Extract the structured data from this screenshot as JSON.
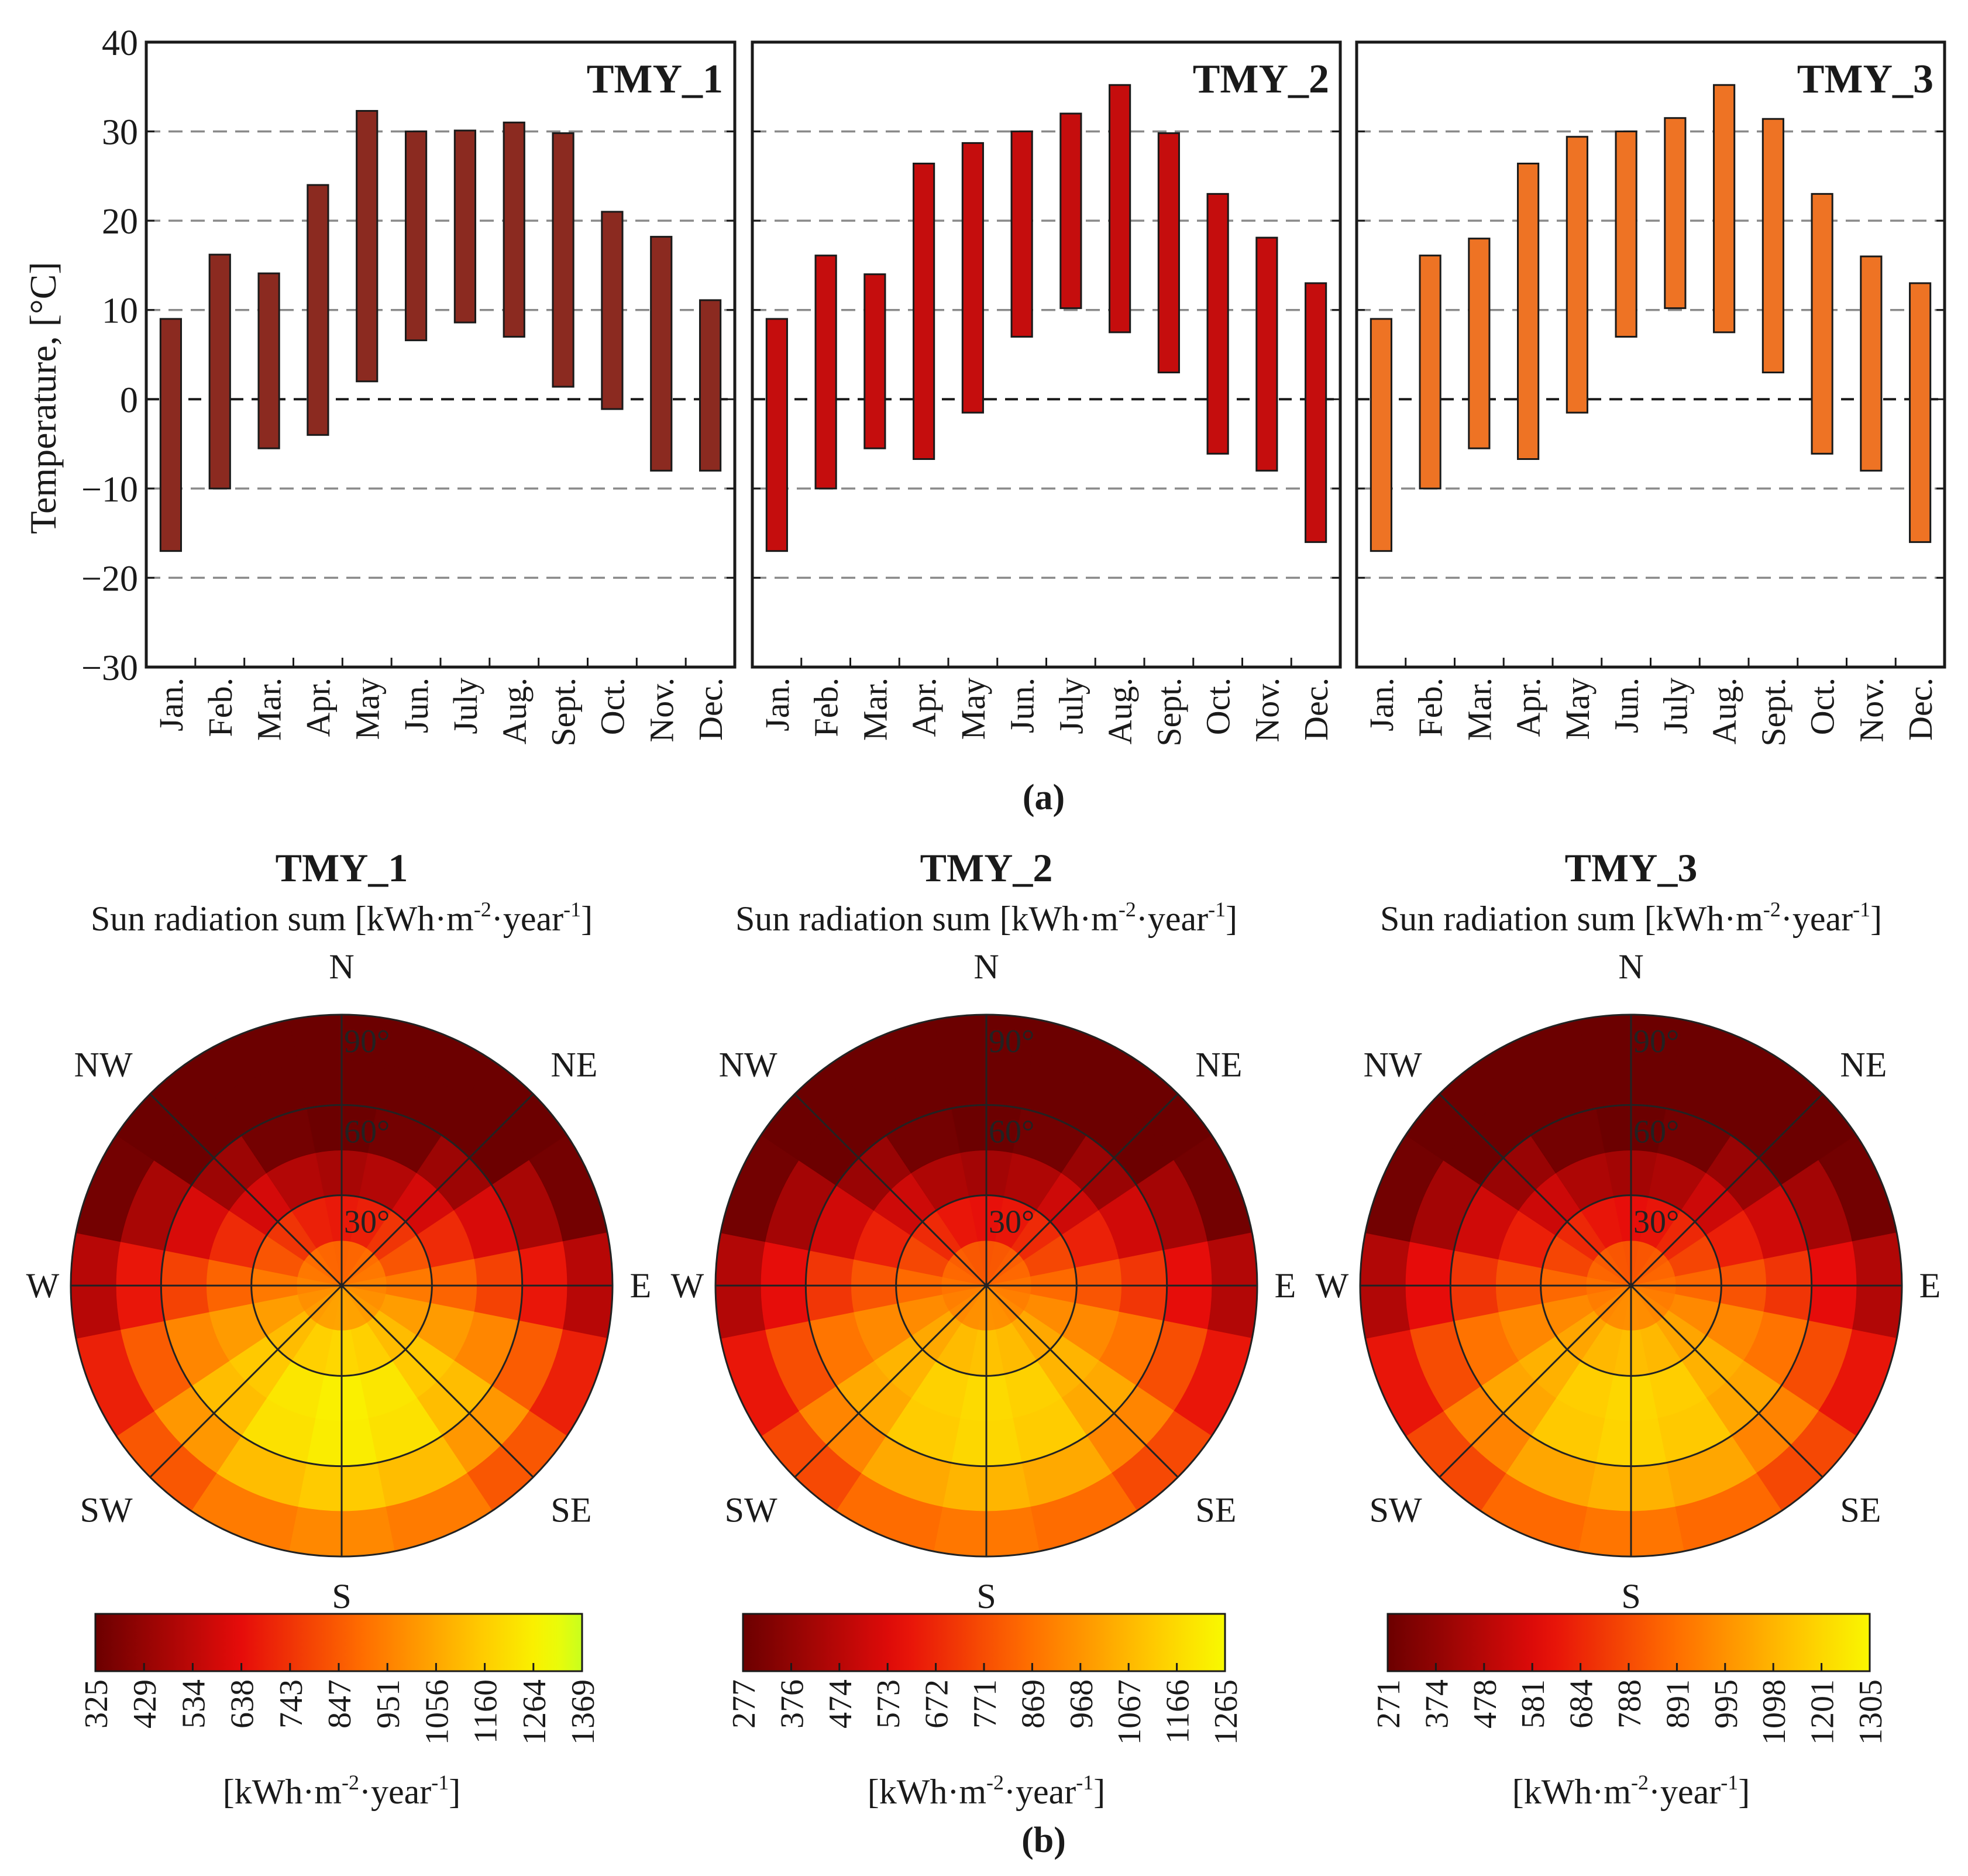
{
  "chart_data": [
    {
      "type": "bar",
      "subtype": "floating-range",
      "title": "TMY_1",
      "ylabel": "Temperature, [°C]",
      "ylim": [
        -30,
        40
      ],
      "yticks": [
        -30,
        -20,
        -10,
        0,
        10,
        20,
        30,
        40
      ],
      "grid": "dashed horizontal lines at -20, -10, 0, 10, 20, 30",
      "categories": [
        "Jan.",
        "Feb.",
        "Mar.",
        "Apr.",
        "May",
        "Jun.",
        "July",
        "Aug.",
        "Sept.",
        "Oct.",
        "Nov.",
        "Dec."
      ],
      "min": [
        -17,
        -10,
        -5.5,
        -4,
        2,
        6.6,
        8.6,
        7,
        1.4,
        -1.1,
        -8,
        -8
      ],
      "max": [
        9,
        16.2,
        14.1,
        24,
        32.3,
        30,
        30.1,
        31,
        29.8,
        21,
        18.2,
        11.1
      ],
      "color": "#8b2a20"
    },
    {
      "type": "bar",
      "subtype": "floating-range",
      "title": "TMY_2",
      "ylim": [
        -30,
        40
      ],
      "categories": [
        "Jan.",
        "Feb.",
        "Mar.",
        "Apr.",
        "May",
        "Jun.",
        "July",
        "Aug.",
        "Sept.",
        "Oct.",
        "Nov.",
        "Dec."
      ],
      "min": [
        -17,
        -10,
        -5.5,
        -6.7,
        -1.5,
        7,
        10.2,
        7.5,
        3,
        -6.1,
        -8,
        -16
      ],
      "max": [
        9,
        16.1,
        14,
        26.4,
        28.7,
        30,
        32,
        35.2,
        29.8,
        23,
        18.1,
        13
      ],
      "color": "#c50d0d"
    },
    {
      "type": "bar",
      "subtype": "floating-range",
      "title": "TMY_3",
      "ylim": [
        -30,
        40
      ],
      "categories": [
        "Jan.",
        "Feb.",
        "Mar.",
        "Apr.",
        "May",
        "Jun.",
        "July",
        "Aug.",
        "Sept.",
        "Oct.",
        "Nov.",
        "Dec."
      ],
      "min": [
        -17,
        -10,
        -5.5,
        -6.7,
        -1.5,
        7,
        10.2,
        7.5,
        3,
        -6.1,
        -8,
        -16
      ],
      "max": [
        9,
        16.1,
        18,
        26.4,
        29.4,
        30,
        31.5,
        35.2,
        31.4,
        23,
        16,
        13
      ],
      "color": "#ee7324"
    },
    {
      "type": "heatmap",
      "subtype": "polar (azimuth x tilt)",
      "title": "TMY_1",
      "subtitle_prefix": "Sun radiation sum [kWh·m",
      "subtitle_exp1": "-2",
      "subtitle_mid": "·year",
      "subtitle_exp2": "-1",
      "subtitle_suffix": "]",
      "colorbar_ticks": [
        "325",
        "429",
        "534",
        "638",
        "743",
        "847",
        "951",
        "1056",
        "1160",
        "1264",
        "1369"
      ],
      "vmin": 325,
      "vmax": 1369,
      "colormap": "hot"
    },
    {
      "type": "heatmap",
      "subtype": "polar (azimuth x tilt)",
      "title": "TMY_2",
      "subtitle_prefix": "Sun radiation sum [kWh·m",
      "subtitle_exp1": "-2",
      "subtitle_mid": "·year",
      "subtitle_exp2": "-1",
      "subtitle_suffix": "]",
      "colorbar_ticks": [
        "277",
        "376",
        "474",
        "573",
        "672",
        "771",
        "869",
        "968",
        "1067",
        "1166",
        "1265"
      ],
      "vmin": 277,
      "vmax": 1265,
      "colormap": "hot"
    },
    {
      "type": "heatmap",
      "subtype": "polar (azimuth x tilt)",
      "title": "TMY_3",
      "subtitle_prefix": "Sun radiation sum [kWh·m",
      "subtitle_exp1": "-2",
      "subtitle_mid": "·year",
      "subtitle_exp2": "-1",
      "subtitle_suffix": "]",
      "colorbar_ticks": [
        "271",
        "374",
        "478",
        "581",
        "684",
        "788",
        "891",
        "995",
        "1098",
        "1201",
        "1305"
      ],
      "vmin": 271,
      "vmax": 1305,
      "colormap": "hot"
    }
  ],
  "polar": {
    "directions": [
      "N",
      "NE",
      "E",
      "SE",
      "S",
      "SW",
      "W",
      "NW"
    ],
    "ring_labels": [
      "30°",
      "60°",
      "90°"
    ],
    "unit_prefix": "[kWh·m",
    "unit_exp1": "-2",
    "unit_mid": "·year",
    "unit_exp2": "-1",
    "unit_suffix": "]"
  },
  "panel_labels": {
    "a": "(a)",
    "b": "(b)"
  }
}
